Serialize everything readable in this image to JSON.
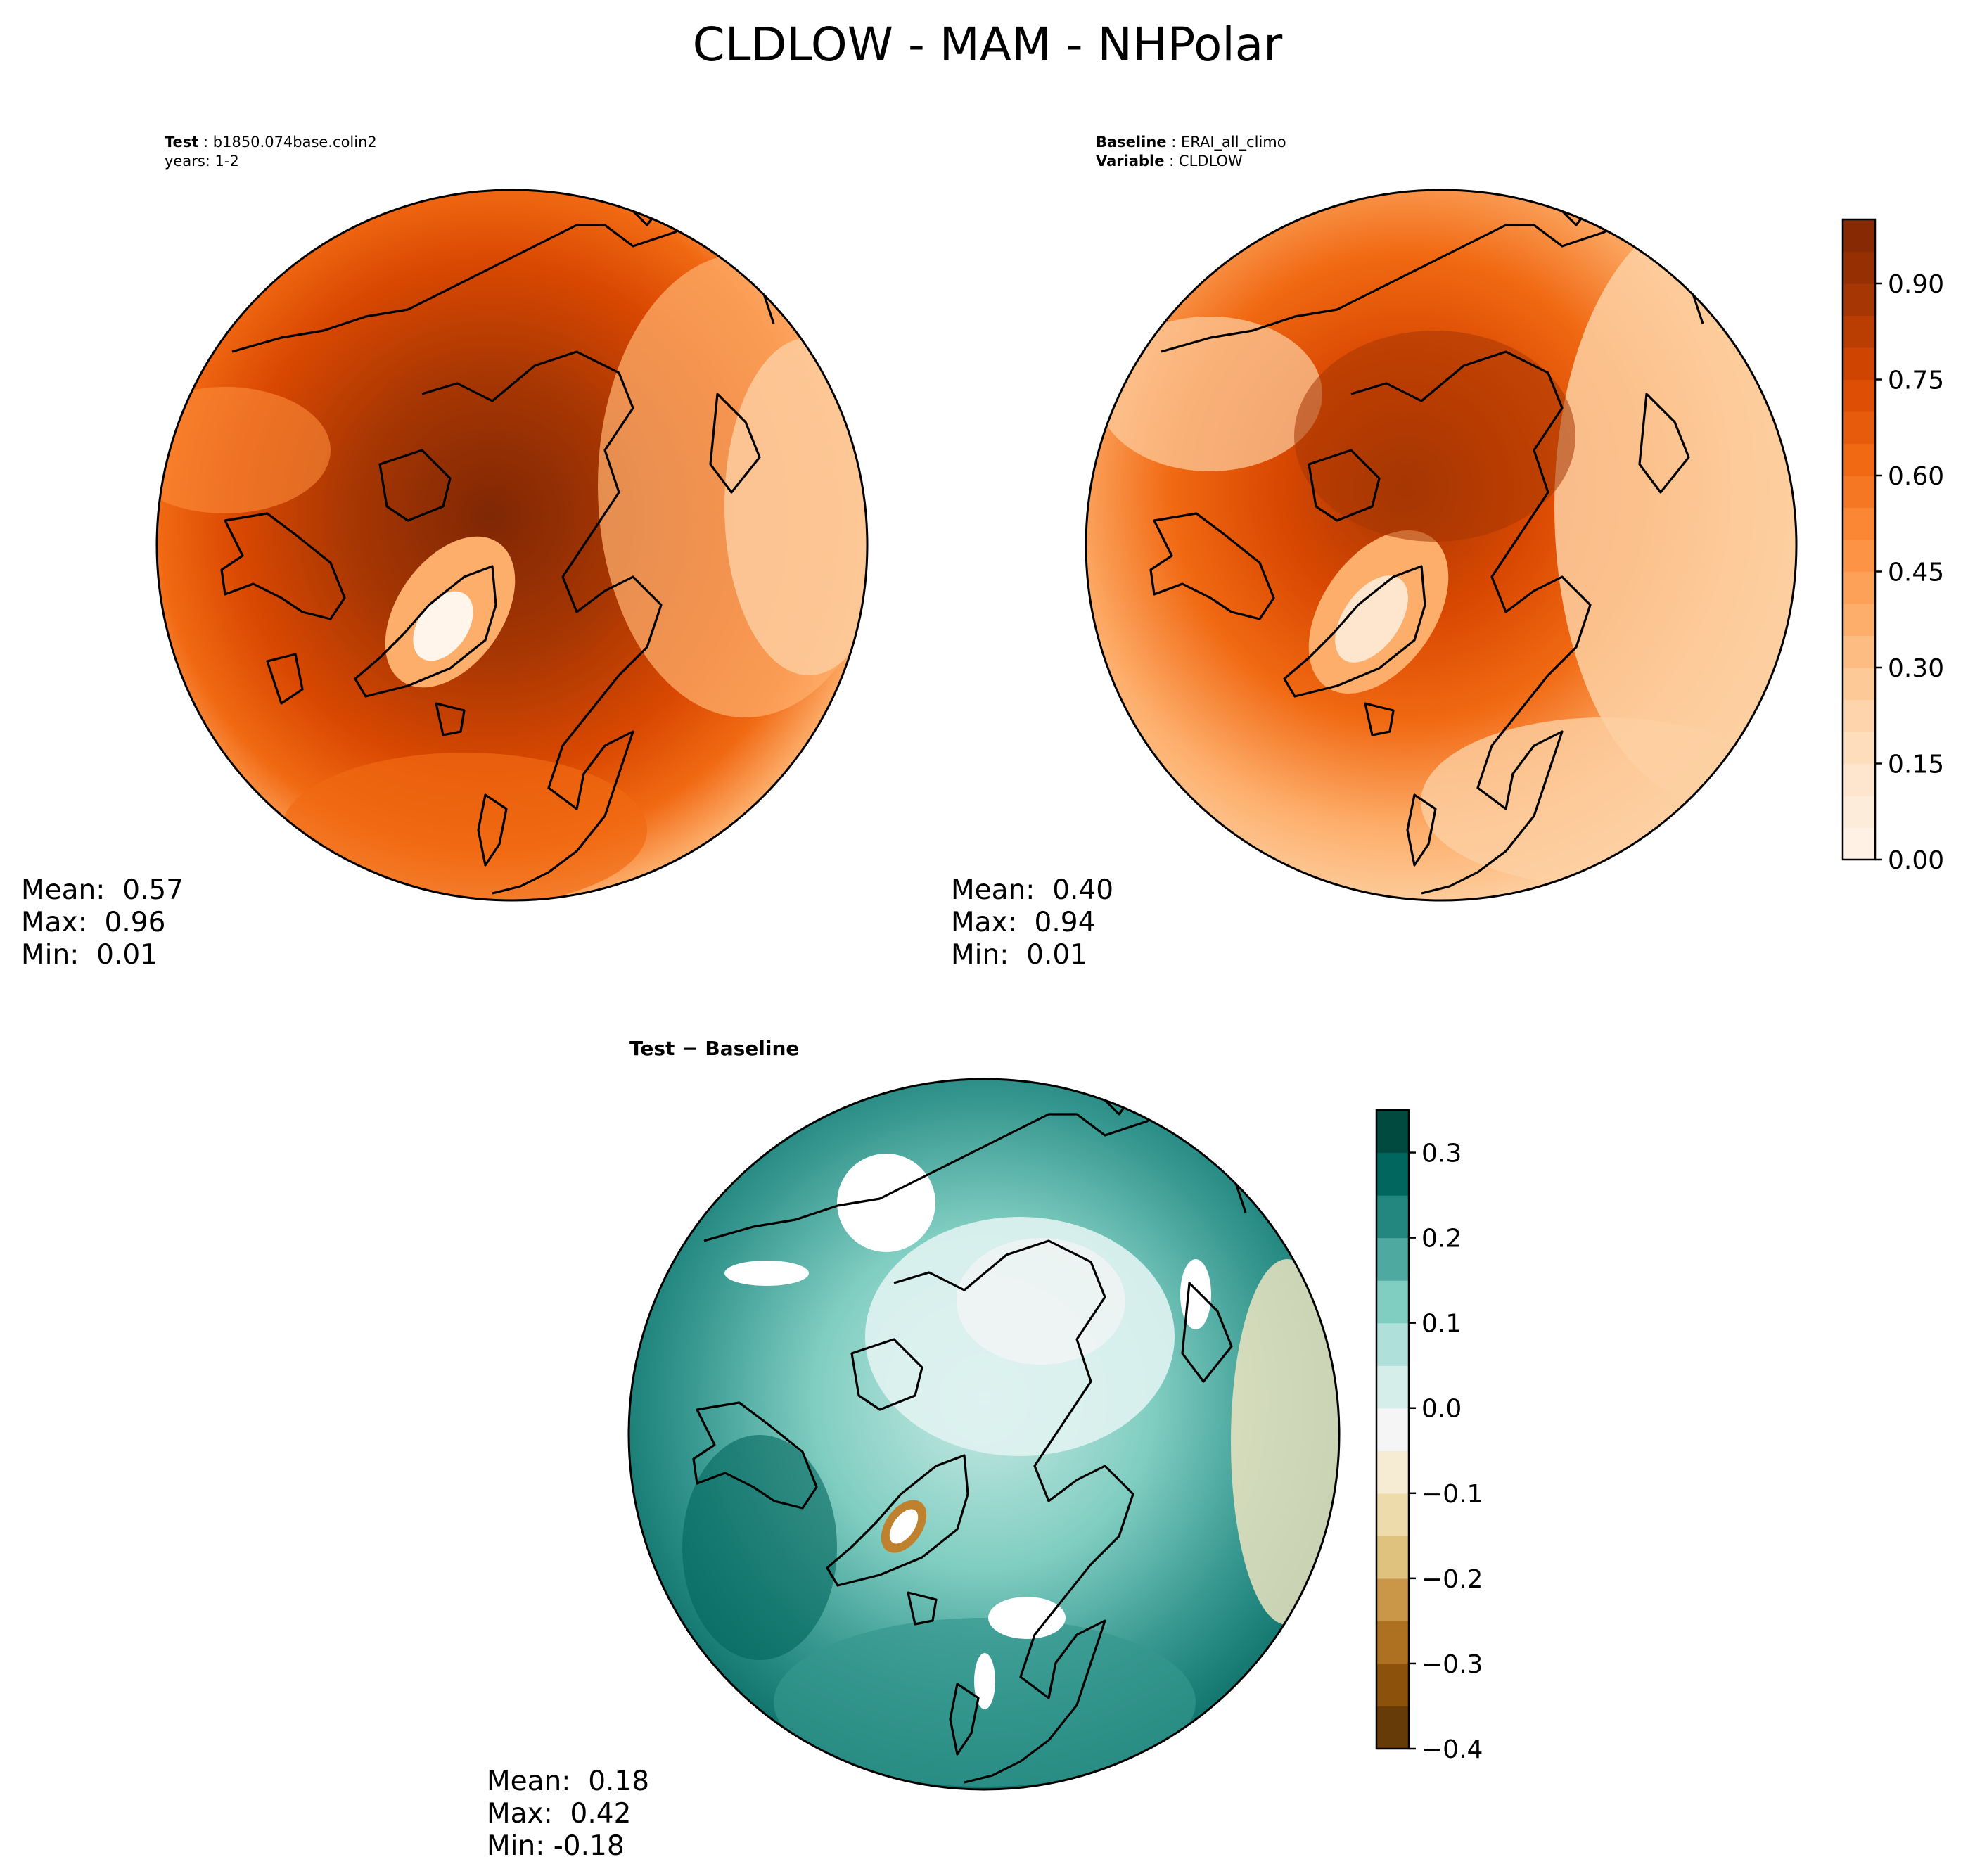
{
  "figure": {
    "title": "CLDLOW - MAM - NHPolar"
  },
  "panels": {
    "test": {
      "header_label": "Test",
      "header_value": "b1850.074base.colin2",
      "header_line2": "years: 1-2",
      "stats": [
        "Mean:  0.57",
        "Max:  0.96",
        "Min:  0.01"
      ]
    },
    "baseline": {
      "header_label": "Baseline",
      "header_value": "ERAI_all_climo",
      "header_label2": "Variable",
      "header_value2": "CLDLOW",
      "stats": [
        "Mean:  0.40",
        "Max:  0.94",
        "Min:  0.01"
      ]
    },
    "diff": {
      "header": "Test − Baseline",
      "stats": [
        "Mean:  0.18",
        "Max:  0.42",
        "Min: -0.18"
      ]
    }
  },
  "colors": {
    "orange_scale": [
      "#fff5eb",
      "#fee6ce",
      "#fdd0a2",
      "#fdae6b",
      "#fd8d3c",
      "#f16913",
      "#d94801",
      "#a63603",
      "#7f2704"
    ],
    "diff_scale": [
      "#543005",
      "#8c510a",
      "#bf812d",
      "#dfc27d",
      "#f6e8c3",
      "#f5f5f5",
      "#c7eae5",
      "#80cdc1",
      "#35978f",
      "#01665e",
      "#003c30"
    ],
    "land_outline": "#000000"
  },
  "chart_data": [
    {
      "type": "heatmap",
      "name": "Test",
      "projection": "north polar stereographic",
      "variable": "CLDLOW",
      "mean": 0.57,
      "max": 0.96,
      "min": 0.01
    },
    {
      "type": "heatmap",
      "name": "Baseline",
      "projection": "north polar stereographic",
      "variable": "CLDLOW",
      "mean": 0.4,
      "max": 0.94,
      "min": 0.01,
      "colorbar": {
        "range": [
          0.0,
          1.0
        ],
        "levels": 20,
        "ticks": [
          0.0,
          0.15,
          0.3,
          0.45,
          0.6,
          0.75,
          0.9
        ],
        "tick_labels": [
          "0.00",
          "0.15",
          "0.30",
          "0.45",
          "0.60",
          "0.75",
          "0.90"
        ]
      }
    },
    {
      "type": "heatmap",
      "name": "Test − Baseline",
      "projection": "north polar stereographic",
      "mean": 0.18,
      "max": 0.42,
      "min": -0.18,
      "colorbar": {
        "range": [
          -0.4,
          0.35
        ],
        "levels": 15,
        "ticks": [
          -0.4,
          -0.3,
          -0.2,
          -0.1,
          0.0,
          0.1,
          0.2,
          0.3
        ],
        "tick_labels": [
          "−0.4",
          "−0.3",
          "−0.2",
          "−0.1",
          "0.0",
          "0.1",
          "0.2",
          "0.3"
        ]
      }
    }
  ]
}
